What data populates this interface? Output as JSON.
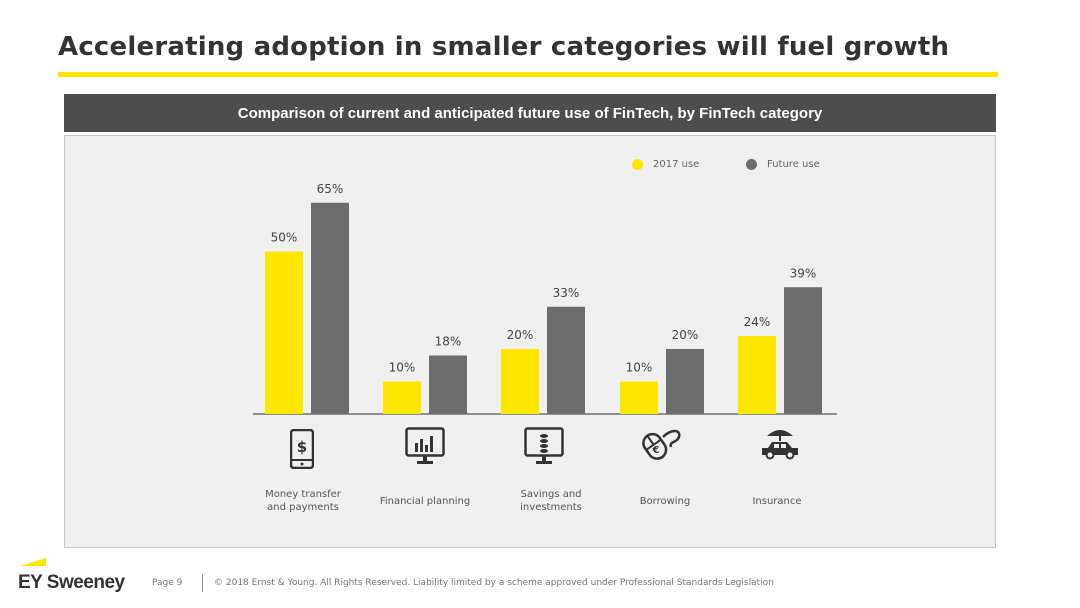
{
  "title": "Accelerating adoption in smaller categories will fuel growth",
  "banner": "Comparison of current and anticipated future use of FinTech, by FinTech category",
  "legend": [
    {
      "label": "2017 use",
      "color": "#ffe600"
    },
    {
      "label": "Future use",
      "color": "#6d6d6d"
    }
  ],
  "chart_data": {
    "type": "bar",
    "title": "Comparison of current and anticipated future use of FinTech, by FinTech category",
    "categories": [
      "Money transfer and payments",
      "Financial planning",
      "Savings and investments",
      "Borrowing",
      "Insurance"
    ],
    "category_lines": [
      [
        "Money transfer",
        "and payments"
      ],
      [
        "Financial planning"
      ],
      [
        "Savings and",
        "investments"
      ],
      [
        "Borrowing"
      ],
      [
        "Insurance"
      ]
    ],
    "series": [
      {
        "name": "2017 use",
        "values": [
          50,
          10,
          20,
          10,
          24
        ],
        "color": "#ffe600"
      },
      {
        "name": "Future use",
        "values": [
          65,
          18,
          33,
          20,
          39
        ],
        "color": "#6d6d6d"
      }
    ],
    "value_suffix": "%",
    "ylim": [
      0,
      70
    ],
    "grid": false,
    "legend_position": "top-right"
  },
  "icons": [
    "mobile-dollar-icon",
    "monitor-chart-icon",
    "monitor-coins-icon",
    "mouse-euro-icon",
    "car-umbrella-icon"
  ],
  "footer": {
    "logo": "EY Sweeney",
    "page": "Page 9",
    "copyright": "© 2018 Ernst & Young. All Rights Reserved. Liability limited by a scheme approved under Professional Standards Legislation"
  }
}
